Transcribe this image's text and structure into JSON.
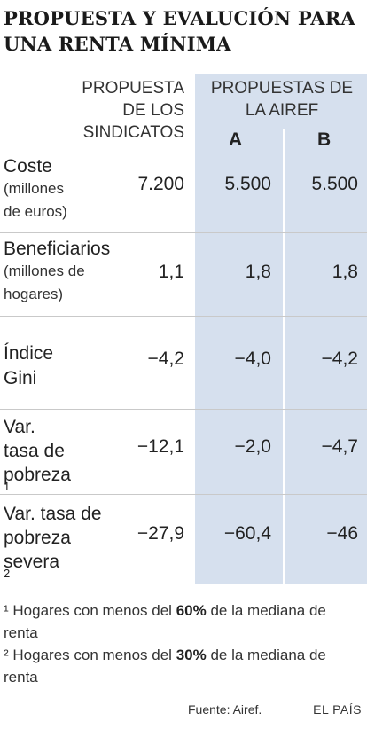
{
  "title": {
    "line1": "PROPUESTA Y EVALUCIÓN PARA",
    "line2": "UNA RENTA MÍNIMA"
  },
  "headers": {
    "sindicatos": [
      "PROPUESTA",
      "DE LOS",
      "SINDICATOS"
    ],
    "airef": [
      "PROPUESTAS DE",
      "LA AIREF"
    ],
    "col_a": "A",
    "col_b": "B"
  },
  "rows": [
    {
      "label": [
        "Coste"
      ],
      "sub": [
        "(millones",
        "de euros)"
      ],
      "values": [
        "7.200",
        "5.500",
        "5.500"
      ]
    },
    {
      "label": [
        "Beneficiarios"
      ],
      "sub": [
        "(millones de",
        "hogares)"
      ],
      "values": [
        "1,1",
        "1,8",
        "1,8"
      ]
    },
    {
      "label": [
        "Índice",
        "Gini"
      ],
      "sub": [],
      "values": [
        "−4,2",
        "−4,0",
        "−4,2"
      ]
    },
    {
      "label": [
        "Var.",
        "tasa de",
        "pobreza"
      ],
      "sup": "1",
      "sub": [],
      "values": [
        "−12,1",
        "−2,0",
        "−4,7"
      ]
    },
    {
      "label": [
        "Var. tasa de",
        "pobreza",
        "severa"
      ],
      "sup": "2",
      "sub": [],
      "values": [
        "−27,9",
        "−60,4",
        "−46"
      ]
    }
  ],
  "notes": {
    "n1": {
      "mark": "¹",
      "pre": "Hogares con menos del",
      "bold": "60%",
      "post": "de la mediana de renta"
    },
    "n2": {
      "mark": "²",
      "pre": "Hogares con menos del",
      "bold": "30%",
      "post": "de la mediana de renta"
    }
  },
  "footer": {
    "source": "Fuente: Airef.",
    "brand": "EL PAÍS"
  }
}
